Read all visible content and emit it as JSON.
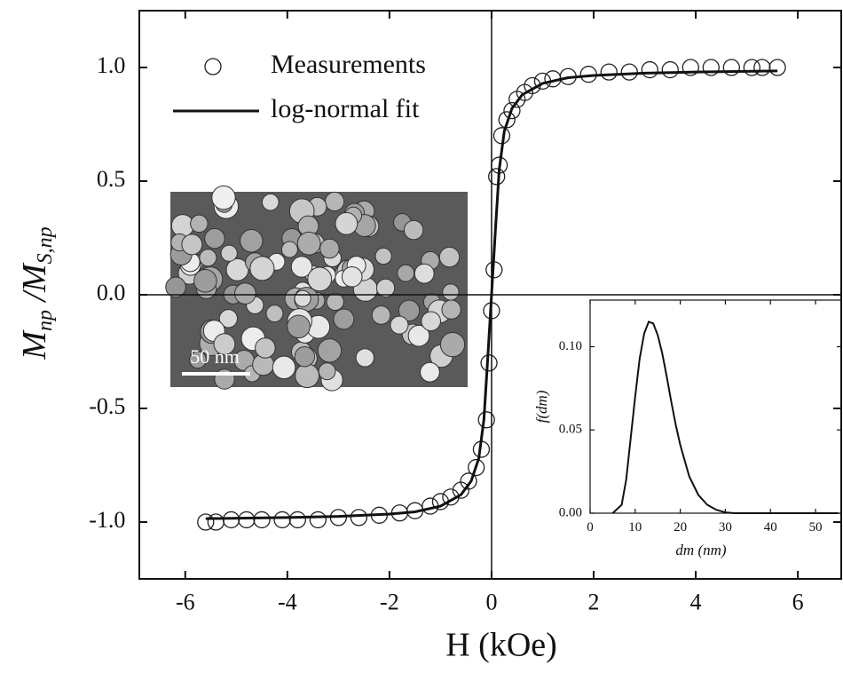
{
  "chart_data": [
    {
      "type": "scatter",
      "xlabel": "H (kOe)",
      "ylabel_parts": [
        "M",
        "np",
        " /M",
        "S,np"
      ],
      "xlim": [
        -6.9,
        6.85
      ],
      "ylim": [
        -1.25,
        1.25
      ],
      "xticks": [
        -6,
        -4,
        -2,
        0,
        2,
        4,
        6
      ],
      "yticks": [
        {
          "value": -1.0,
          "label": "-1.0"
        },
        {
          "value": -0.5,
          "label": "-0.5"
        },
        {
          "value": 0.0,
          "label": "0.0"
        },
        {
          "value": 0.5,
          "label": "0.5"
        },
        {
          "value": 1.0,
          "label": "1.0"
        }
      ],
      "annotations": [
        "50 nm"
      ],
      "series": [
        {
          "name": "Measurements",
          "type": "scatter",
          "color": "#222222",
          "x": [
            -5.6,
            -5.4,
            -5.1,
            -4.8,
            -4.5,
            -4.1,
            -3.8,
            -3.4,
            -3.0,
            -2.6,
            -2.2,
            -1.8,
            -1.5,
            -1.2,
            -1.0,
            -0.8,
            -0.6,
            -0.45,
            -0.3,
            -0.2,
            -0.1,
            -0.05,
            0.0,
            0.05,
            0.1,
            0.15,
            0.2,
            0.3,
            0.4,
            0.5,
            0.65,
            0.8,
            1.0,
            1.2,
            1.5,
            1.9,
            2.3,
            2.7,
            3.1,
            3.5,
            3.9,
            4.3,
            4.7,
            5.1,
            5.3,
            5.6
          ],
          "values": [
            -1.0,
            -1.0,
            -0.99,
            -0.99,
            -0.99,
            -0.99,
            -0.99,
            -0.99,
            -0.98,
            -0.98,
            -0.97,
            -0.96,
            -0.95,
            -0.93,
            -0.91,
            -0.89,
            -0.86,
            -0.82,
            -0.76,
            -0.68,
            -0.55,
            -0.3,
            -0.07,
            0.11,
            0.52,
            0.57,
            0.7,
            0.77,
            0.81,
            0.86,
            0.89,
            0.92,
            0.94,
            0.95,
            0.96,
            0.97,
            0.98,
            0.98,
            0.99,
            0.99,
            1.0,
            1.0,
            1.0,
            1.0,
            1.0,
            1.0
          ]
        },
        {
          "name": "log-normal fit",
          "type": "line",
          "color": "#111111",
          "x": [
            -5.6,
            -4,
            -3,
            -2,
            -1.5,
            -1,
            -0.6,
            -0.4,
            -0.25,
            -0.15,
            -0.08,
            0,
            0.08,
            0.15,
            0.25,
            0.4,
            0.6,
            1,
            1.5,
            2,
            3,
            4,
            5.6
          ],
          "values": [
            -0.985,
            -0.98,
            -0.975,
            -0.965,
            -0.955,
            -0.93,
            -0.88,
            -0.82,
            -0.72,
            -0.55,
            -0.3,
            0,
            0.3,
            0.55,
            0.72,
            0.82,
            0.88,
            0.93,
            0.955,
            0.965,
            0.975,
            0.98,
            0.985
          ]
        }
      ]
    },
    {
      "type": "line",
      "xlabel": "dm (nm)",
      "ylabel": "f(dm)",
      "xlim": [
        0,
        55.7
      ],
      "ylim": [
        0,
        0.128
      ],
      "xticks": [
        0,
        10,
        20,
        30,
        40,
        50
      ],
      "yticks": [
        {
          "value": 0,
          "label": "0.00"
        },
        {
          "value": 0.05,
          "label": "0.05"
        },
        {
          "value": 0.1,
          "label": "0.10"
        }
      ],
      "series": [
        {
          "type": "line",
          "color": "#111111",
          "x": [
            5,
            7,
            8,
            9,
            10,
            11,
            12,
            13,
            14,
            15,
            16,
            17,
            18,
            19,
            20,
            22,
            24,
            26,
            28,
            30,
            32,
            40,
            55
          ],
          "values": [
            0,
            0.005,
            0.02,
            0.045,
            0.07,
            0.093,
            0.108,
            0.115,
            0.114,
            0.107,
            0.096,
            0.082,
            0.067,
            0.053,
            0.041,
            0.022,
            0.011,
            0.005,
            0.002,
            0.0005,
            0,
            0,
            0
          ]
        }
      ]
    }
  ]
}
